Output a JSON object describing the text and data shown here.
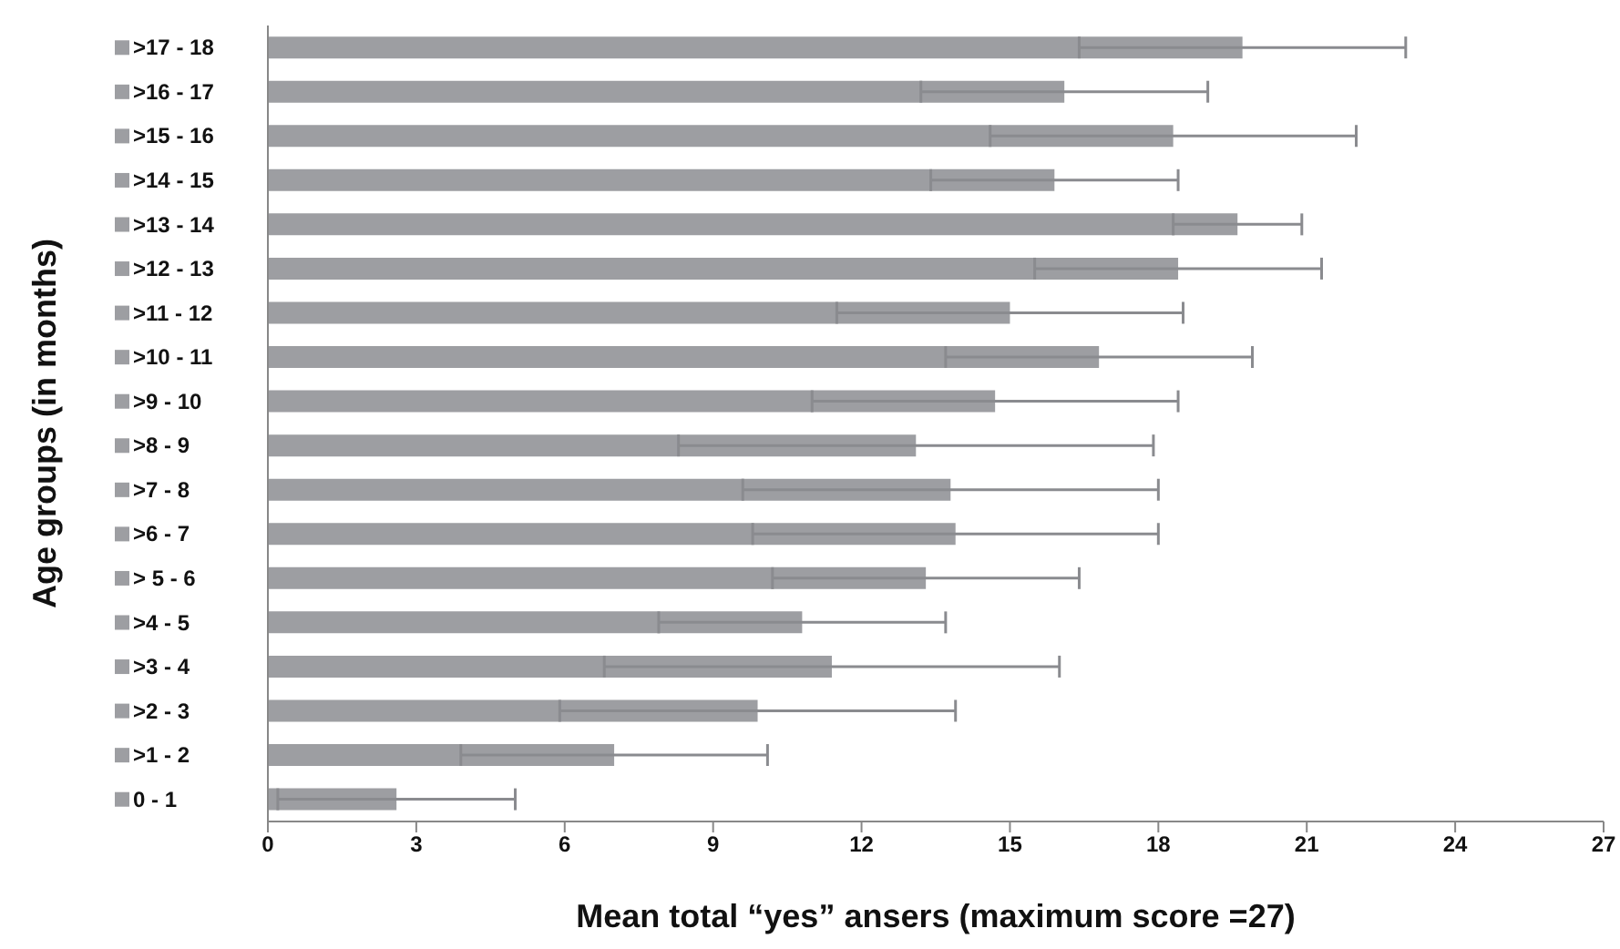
{
  "chart_data": {
    "type": "bar",
    "orientation": "horizontal",
    "xlabel": "Mean total “yes” ansers (maximum score =27)",
    "ylabel": "Age groups  (in months)",
    "categories": [
      ">17 - 18",
      ">16 - 17",
      ">15 - 16",
      ">14 - 15",
      ">13 - 14",
      ">12 - 13",
      ">11 - 12",
      ">10 - 11",
      ">9 - 10",
      ">8 - 9",
      ">7 - 8",
      ">6 - 7",
      "> 5 - 6",
      ">4 - 5",
      ">3 - 4",
      ">2 - 3",
      ">1 - 2",
      "0 - 1"
    ],
    "values": [
      19.7,
      16.1,
      18.3,
      15.9,
      19.6,
      18.4,
      15.0,
      16.8,
      14.7,
      13.1,
      13.8,
      13.9,
      13.3,
      10.8,
      11.4,
      9.9,
      7.0,
      2.6
    ],
    "errors": [
      3.3,
      2.9,
      3.7,
      2.5,
      1.3,
      2.9,
      3.5,
      3.1,
      3.7,
      4.8,
      4.2,
      4.1,
      3.1,
      2.9,
      4.6,
      4.0,
      3.1,
      2.4
    ],
    "color": "#9d9ea2",
    "xlim": [
      0,
      27
    ],
    "xticks": [
      0,
      3,
      6,
      9,
      12,
      15,
      18,
      21,
      24,
      27
    ]
  }
}
